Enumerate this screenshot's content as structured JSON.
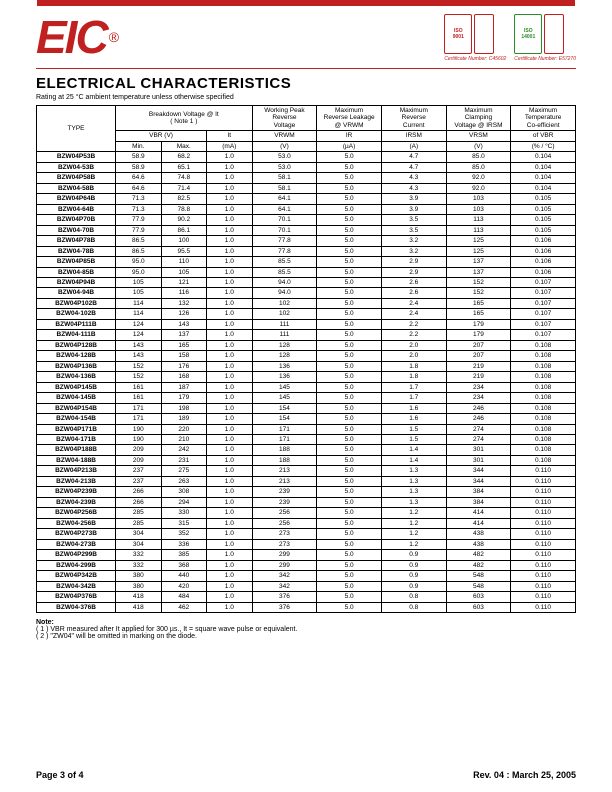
{
  "header": {
    "logo_text": "EIC",
    "logo_reg": "®",
    "cert1_line1": "ISO",
    "cert1_line2": "9001",
    "cert2_line1": "ISO",
    "cert2_line2": "14001",
    "cert_caption1": "Certificate Number: C45602",
    "cert_caption2": "Certificate Number: E57270"
  },
  "page": {
    "title": "ELECTRICAL CHARACTERISTICS",
    "subtitle": "Rating at 25 °C ambient temperature unless otherwise specified"
  },
  "table": {
    "th_type": "TYPE",
    "th_bv": "Breakdown Voltage @  It",
    "th_note1": "( Note 1 )",
    "th_wprv1": "Working Peak",
    "th_wprv2": "Reverse",
    "th_wprv3": "Voltage",
    "th_mrl1": "Maximum",
    "th_mrl2": "Reverse Leakage",
    "th_mrl3": "@ VRWM",
    "th_mrc1": "Maximum",
    "th_mrc2": "Reverse",
    "th_mrc3": "Current",
    "th_mcv1": "Maximum",
    "th_mcv2": "Clamping",
    "th_mcv3": "Voltage @ IRSM",
    "th_mtc1": "Maximum",
    "th_mtc2": "Temperature",
    "th_mtc3": "Co-efficient",
    "sh_vbr": "VBR (V)",
    "sh_it": "It",
    "sh_vrwm": "VRWM",
    "sh_ir": "IR",
    "sh_irsm": "IRSM",
    "sh_vrsm": "VRSM",
    "sh_ofvbr": "of  VBR",
    "u_min": "Min.",
    "u_max": "Max.",
    "u_ma": "(mA)",
    "u_v": "(V)",
    "u_ua": "(µA)",
    "u_a": "(A)",
    "u_pct": "(% / °C)"
  },
  "rows": [
    {
      "t": "BZW04P53B",
      "min": "58.9",
      "max": "68.2",
      "it": "1.0",
      "vrwm": "53.0",
      "ir": "5.0",
      "irsm": "4.7",
      "vrsm": "85.0",
      "tc": "0.104"
    },
    {
      "t": "BZW04-53B",
      "min": "58.9",
      "max": "65.1",
      "it": "1.0",
      "vrwm": "53.0",
      "ir": "5.0",
      "irsm": "4.7",
      "vrsm": "85.0",
      "tc": "0.104"
    },
    {
      "t": "BZW04P58B",
      "min": "64.6",
      "max": "74.8",
      "it": "1.0",
      "vrwm": "58.1",
      "ir": "5.0",
      "irsm": "4.3",
      "vrsm": "92.0",
      "tc": "0.104"
    },
    {
      "t": "BZW04-58B",
      "min": "64.6",
      "max": "71.4",
      "it": "1.0",
      "vrwm": "58.1",
      "ir": "5.0",
      "irsm": "4.3",
      "vrsm": "92.0",
      "tc": "0.104"
    },
    {
      "t": "BZW04P64B",
      "min": "71.3",
      "max": "82.5",
      "it": "1.0",
      "vrwm": "64.1",
      "ir": "5.0",
      "irsm": "3.9",
      "vrsm": "103",
      "tc": "0.105"
    },
    {
      "t": "BZW04-64B",
      "min": "71.3",
      "max": "78.8",
      "it": "1.0",
      "vrwm": "64.1",
      "ir": "5.0",
      "irsm": "3.9",
      "vrsm": "103",
      "tc": "0.105"
    },
    {
      "t": "BZW04P70B",
      "min": "77.9",
      "max": "90.2",
      "it": "1.0",
      "vrwm": "70.1",
      "ir": "5.0",
      "irsm": "3.5",
      "vrsm": "113",
      "tc": "0.105"
    },
    {
      "t": "BZW04-70B",
      "min": "77.9",
      "max": "86.1",
      "it": "1.0",
      "vrwm": "70.1",
      "ir": "5.0",
      "irsm": "3.5",
      "vrsm": "113",
      "tc": "0.105"
    },
    {
      "t": "BZW04P78B",
      "min": "86.5",
      "max": "100",
      "it": "1.0",
      "vrwm": "77.8",
      "ir": "5.0",
      "irsm": "3.2",
      "vrsm": "125",
      "tc": "0.106"
    },
    {
      "t": "BZW04-78B",
      "min": "86.5",
      "max": "95.5",
      "it": "1.0",
      "vrwm": "77.8",
      "ir": "5.0",
      "irsm": "3.2",
      "vrsm": "125",
      "tc": "0.106"
    },
    {
      "t": "BZW04P85B",
      "min": "95.0",
      "max": "110",
      "it": "1.0",
      "vrwm": "85.5",
      "ir": "5.0",
      "irsm": "2.9",
      "vrsm": "137",
      "tc": "0.106"
    },
    {
      "t": "BZW04-85B",
      "min": "95.0",
      "max": "105",
      "it": "1.0",
      "vrwm": "85.5",
      "ir": "5.0",
      "irsm": "2.9",
      "vrsm": "137",
      "tc": "0.106"
    },
    {
      "t": "BZW04P94B",
      "min": "105",
      "max": "121",
      "it": "1.0",
      "vrwm": "94.0",
      "ir": "5.0",
      "irsm": "2.6",
      "vrsm": "152",
      "tc": "0.107"
    },
    {
      "t": "BZW04-94B",
      "min": "105",
      "max": "116",
      "it": "1.0",
      "vrwm": "94.0",
      "ir": "5.0",
      "irsm": "2.6",
      "vrsm": "152",
      "tc": "0.107"
    },
    {
      "t": "BZW04P102B",
      "min": "114",
      "max": "132",
      "it": "1.0",
      "vrwm": "102",
      "ir": "5.0",
      "irsm": "2.4",
      "vrsm": "165",
      "tc": "0.107"
    },
    {
      "t": "BZW04-102B",
      "min": "114",
      "max": "126",
      "it": "1.0",
      "vrwm": "102",
      "ir": "5.0",
      "irsm": "2.4",
      "vrsm": "165",
      "tc": "0.107"
    },
    {
      "t": "BZW04P111B",
      "min": "124",
      "max": "143",
      "it": "1.0",
      "vrwm": "111",
      "ir": "5.0",
      "irsm": "2.2",
      "vrsm": "179",
      "tc": "0.107"
    },
    {
      "t": "BZW04-111B",
      "min": "124",
      "max": "137",
      "it": "1.0",
      "vrwm": "111",
      "ir": "5.0",
      "irsm": "2.2",
      "vrsm": "179",
      "tc": "0.107"
    },
    {
      "t": "BZW04P128B",
      "min": "143",
      "max": "165",
      "it": "1.0",
      "vrwm": "128",
      "ir": "5.0",
      "irsm": "2.0",
      "vrsm": "207",
      "tc": "0.108"
    },
    {
      "t": "BZW04-128B",
      "min": "143",
      "max": "158",
      "it": "1.0",
      "vrwm": "128",
      "ir": "5.0",
      "irsm": "2.0",
      "vrsm": "207",
      "tc": "0.108"
    },
    {
      "t": "BZW04P136B",
      "min": "152",
      "max": "176",
      "it": "1.0",
      "vrwm": "136",
      "ir": "5.0",
      "irsm": "1.8",
      "vrsm": "219",
      "tc": "0.108"
    },
    {
      "t": "BZW04-136B",
      "min": "152",
      "max": "168",
      "it": "1.0",
      "vrwm": "136",
      "ir": "5.0",
      "irsm": "1.8",
      "vrsm": "219",
      "tc": "0.108"
    },
    {
      "t": "BZW04P145B",
      "min": "161",
      "max": "187",
      "it": "1.0",
      "vrwm": "145",
      "ir": "5.0",
      "irsm": "1.7",
      "vrsm": "234",
      "tc": "0.108"
    },
    {
      "t": "BZW04-145B",
      "min": "161",
      "max": "179",
      "it": "1.0",
      "vrwm": "145",
      "ir": "5.0",
      "irsm": "1.7",
      "vrsm": "234",
      "tc": "0.108"
    },
    {
      "t": "BZW04P154B",
      "min": "171",
      "max": "198",
      "it": "1.0",
      "vrwm": "154",
      "ir": "5.0",
      "irsm": "1.6",
      "vrsm": "246",
      "tc": "0.108"
    },
    {
      "t": "BZW04-154B",
      "min": "171",
      "max": "189",
      "it": "1.0",
      "vrwm": "154",
      "ir": "5.0",
      "irsm": "1.6",
      "vrsm": "246",
      "tc": "0.108"
    },
    {
      "t": "BZW04P171B",
      "min": "190",
      "max": "220",
      "it": "1.0",
      "vrwm": "171",
      "ir": "5.0",
      "irsm": "1.5",
      "vrsm": "274",
      "tc": "0.108"
    },
    {
      "t": "BZW04-171B",
      "min": "190",
      "max": "210",
      "it": "1.0",
      "vrwm": "171",
      "ir": "5.0",
      "irsm": "1.5",
      "vrsm": "274",
      "tc": "0.108"
    },
    {
      "t": "BZW04P188B",
      "min": "209",
      "max": "242",
      "it": "1.0",
      "vrwm": "188",
      "ir": "5.0",
      "irsm": "1.4",
      "vrsm": "301",
      "tc": "0.108"
    },
    {
      "t": "BZW04-188B",
      "min": "209",
      "max": "231",
      "it": "1.0",
      "vrwm": "188",
      "ir": "5.0",
      "irsm": "1.4",
      "vrsm": "301",
      "tc": "0.108"
    },
    {
      "t": "BZW04P213B",
      "min": "237",
      "max": "275",
      "it": "1.0",
      "vrwm": "213",
      "ir": "5.0",
      "irsm": "1.3",
      "vrsm": "344",
      "tc": "0.110"
    },
    {
      "t": "BZW04-213B",
      "min": "237",
      "max": "263",
      "it": "1.0",
      "vrwm": "213",
      "ir": "5.0",
      "irsm": "1.3",
      "vrsm": "344",
      "tc": "0.110"
    },
    {
      "t": "BZW04P239B",
      "min": "266",
      "max": "308",
      "it": "1.0",
      "vrwm": "239",
      "ir": "5.0",
      "irsm": "1.3",
      "vrsm": "384",
      "tc": "0.110"
    },
    {
      "t": "BZW04-239B",
      "min": "266",
      "max": "294",
      "it": "1.0",
      "vrwm": "239",
      "ir": "5.0",
      "irsm": "1.3",
      "vrsm": "384",
      "tc": "0.110"
    },
    {
      "t": "BZW04P256B",
      "min": "285",
      "max": "330",
      "it": "1.0",
      "vrwm": "256",
      "ir": "5.0",
      "irsm": "1.2",
      "vrsm": "414",
      "tc": "0.110"
    },
    {
      "t": "BZW04-256B",
      "min": "285",
      "max": "315",
      "it": "1.0",
      "vrwm": "256",
      "ir": "5.0",
      "irsm": "1.2",
      "vrsm": "414",
      "tc": "0.110"
    },
    {
      "t": "BZW04P273B",
      "min": "304",
      "max": "352",
      "it": "1.0",
      "vrwm": "273",
      "ir": "5.0",
      "irsm": "1.2",
      "vrsm": "438",
      "tc": "0.110"
    },
    {
      "t": "BZW04-273B",
      "min": "304",
      "max": "336",
      "it": "1.0",
      "vrwm": "273",
      "ir": "5.0",
      "irsm": "1.2",
      "vrsm": "438",
      "tc": "0.110"
    },
    {
      "t": "BZW04P299B",
      "min": "332",
      "max": "385",
      "it": "1.0",
      "vrwm": "299",
      "ir": "5.0",
      "irsm": "0.9",
      "vrsm": "482",
      "tc": "0.110"
    },
    {
      "t": "BZW04-299B",
      "min": "332",
      "max": "368",
      "it": "1.0",
      "vrwm": "299",
      "ir": "5.0",
      "irsm": "0.9",
      "vrsm": "482",
      "tc": "0.110"
    },
    {
      "t": "BZW04P342B",
      "min": "380",
      "max": "440",
      "it": "1.0",
      "vrwm": "342",
      "ir": "5.0",
      "irsm": "0.9",
      "vrsm": "548",
      "tc": "0.110"
    },
    {
      "t": "BZW04-342B",
      "min": "380",
      "max": "420",
      "it": "1.0",
      "vrwm": "342",
      "ir": "5.0",
      "irsm": "0.9",
      "vrsm": "548",
      "tc": "0.110"
    },
    {
      "t": "BZW04P376B",
      "min": "418",
      "max": "484",
      "it": "1.0",
      "vrwm": "376",
      "ir": "5.0",
      "irsm": "0.8",
      "vrsm": "603",
      "tc": "0.110"
    },
    {
      "t": "BZW04-376B",
      "min": "418",
      "max": "462",
      "it": "1.0",
      "vrwm": "376",
      "ir": "5.0",
      "irsm": "0.8",
      "vrsm": "603",
      "tc": "0.110"
    }
  ],
  "notes": {
    "label": "Note:",
    "n1": "( 1 )  VBR measured after It applied for 300 µs., It = square wave pulse or equivalent.",
    "n2": "( 2 ) \"ZW04\" will be omitted in marking on the diode."
  },
  "footer": {
    "left": "Page 3 of 4",
    "right": "Rev. 04 : March 25, 2005"
  }
}
